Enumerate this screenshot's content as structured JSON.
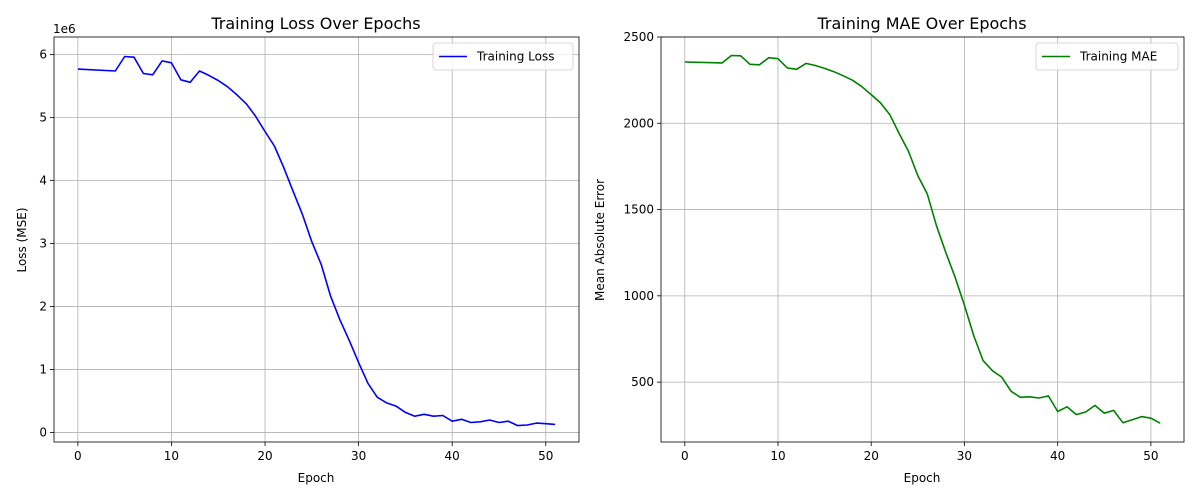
{
  "chart_data": [
    {
      "type": "line",
      "title": "Training Loss Over Epochs",
      "xlabel": "Epoch",
      "ylabel": "Loss (MSE)",
      "offset_label": "1e6",
      "xlim": [
        -2.55,
        53.55
      ],
      "ylim": [
        -0.15,
        6.28
      ],
      "xticks": [
        0,
        10,
        20,
        30,
        40,
        50
      ],
      "yticks": [
        0,
        1,
        2,
        3,
        4,
        5,
        6
      ],
      "grid": true,
      "legend_position": "upper right",
      "series": [
        {
          "name": "Training Loss",
          "color": "#0000ff",
          "x": [
            0,
            4,
            5,
            6,
            7,
            8,
            9,
            10,
            11,
            12,
            13,
            14,
            15,
            16,
            17,
            18,
            19,
            20,
            21,
            22,
            23,
            24,
            25,
            26,
            27,
            28,
            29,
            30,
            31,
            32,
            33,
            34,
            35,
            36,
            37,
            38,
            39,
            40,
            41,
            42,
            43,
            44,
            45,
            46,
            47,
            48,
            49,
            50,
            51
          ],
          "y": [
            5.77,
            5.74,
            5.97,
            5.96,
            5.7,
            5.68,
            5.9,
            5.87,
            5.6,
            5.56,
            5.74,
            5.67,
            5.59,
            5.49,
            5.36,
            5.22,
            5.02,
            4.78,
            4.55,
            4.21,
            3.83,
            3.46,
            3.03,
            2.67,
            2.17,
            1.79,
            1.46,
            1.11,
            0.78,
            0.56,
            0.47,
            0.42,
            0.32,
            0.26,
            0.29,
            0.26,
            0.27,
            0.18,
            0.21,
            0.16,
            0.17,
            0.2,
            0.16,
            0.18,
            0.11,
            0.12,
            0.15,
            0.14,
            0.13
          ]
        }
      ]
    },
    {
      "type": "line",
      "title": "Training MAE Over Epochs",
      "xlabel": "Epoch",
      "ylabel": "Mean Absolute Error",
      "xlim": [
        -2.55,
        53.55
      ],
      "ylim": [
        153,
        2500
      ],
      "xticks": [
        0,
        10,
        20,
        30,
        40,
        50
      ],
      "yticks": [
        500,
        1000,
        1500,
        2000,
        2500
      ],
      "grid": true,
      "legend_position": "upper right",
      "series": [
        {
          "name": "Training MAE",
          "color": "#008000",
          "x": [
            0,
            4,
            5,
            6,
            7,
            8,
            9,
            10,
            11,
            12,
            13,
            14,
            15,
            16,
            17,
            18,
            19,
            20,
            21,
            22,
            23,
            24,
            25,
            26,
            27,
            28,
            29,
            30,
            31,
            32,
            33,
            34,
            35,
            36,
            37,
            38,
            39,
            40,
            41,
            42,
            43,
            44,
            45,
            46,
            47,
            48,
            49,
            50,
            51
          ],
          "y": [
            2355,
            2350,
            2393,
            2391,
            2342,
            2339,
            2380,
            2374,
            2321,
            2313,
            2347,
            2335,
            2318,
            2299,
            2275,
            2249,
            2212,
            2166,
            2118,
            2049,
            1940,
            1837,
            1697,
            1592,
            1406,
            1251,
            1108,
            944,
            768,
            625,
            566,
            529,
            447,
            412,
            415,
            408,
            420,
            330,
            357,
            312,
            327,
            365,
            320,
            336,
            265,
            282,
            300,
            291,
            262
          ]
        }
      ]
    }
  ]
}
